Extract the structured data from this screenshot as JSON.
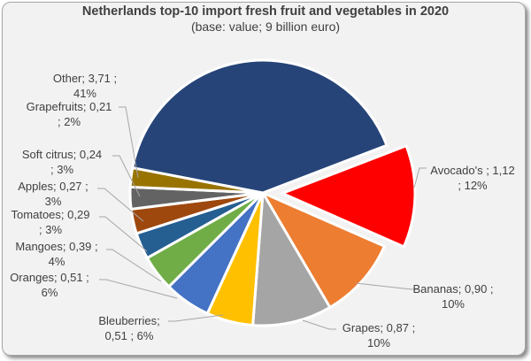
{
  "chart_data": {
    "type": "pie",
    "title": "Netherlands top-10 import fresh fruit and vegetables in 2020",
    "subtitle": "(base: value; 9 billion euro)",
    "unit": "billion euro",
    "slices": [
      {
        "name": "Avocado's",
        "value": 1.12,
        "percent": 12,
        "color": "#ff0000",
        "exploded": true,
        "label": [
          "Avocado's ;  1,12",
          "; 12%"
        ]
      },
      {
        "name": "Bananas",
        "value": 0.9,
        "percent": 10,
        "color": "#ed7d31",
        "label": [
          "Bananas;  0,90 ;",
          "10%"
        ]
      },
      {
        "name": "Grapes",
        "value": 0.87,
        "percent": 10,
        "color": "#a5a5a5",
        "label": [
          "Grapes;  0,87 ;",
          "10%"
        ]
      },
      {
        "name": "Bleuberries",
        "value": 0.51,
        "percent": 6,
        "color": "#ffc000",
        "label": [
          "Bleuberries;",
          "0,51 ; 6%"
        ]
      },
      {
        "name": "Oranges",
        "value": 0.51,
        "percent": 6,
        "color": "#4472c4",
        "label": [
          "Oranges;  0,51 ;",
          "6%"
        ]
      },
      {
        "name": "Mangoes",
        "value": 0.39,
        "percent": 4,
        "color": "#70ad47",
        "label": [
          "Mangoes;  0,39 ;",
          "4%"
        ]
      },
      {
        "name": "Tomatoes",
        "value": 0.29,
        "percent": 3,
        "color": "#255e91",
        "label": [
          "Tomatoes;  0,29",
          "; 3%"
        ]
      },
      {
        "name": "Apples",
        "value": 0.27,
        "percent": 3,
        "color": "#9e480e",
        "label": [
          "Apples;  0,27 ;",
          "3%"
        ]
      },
      {
        "name": "Soft citrus",
        "value": 0.24,
        "percent": 3,
        "color": "#636363",
        "label": [
          "Soft citrus;  0,24",
          "; 3%"
        ]
      },
      {
        "name": "Grapefruits",
        "value": 0.21,
        "percent": 2,
        "color": "#997300",
        "label": [
          "Grapefruits;  0,21",
          "; 2%"
        ]
      },
      {
        "name": "Other",
        "value": 3.71,
        "percent": 41,
        "color": "#264478",
        "label": [
          "Other;  3,71 ;",
          "41%"
        ]
      }
    ]
  }
}
